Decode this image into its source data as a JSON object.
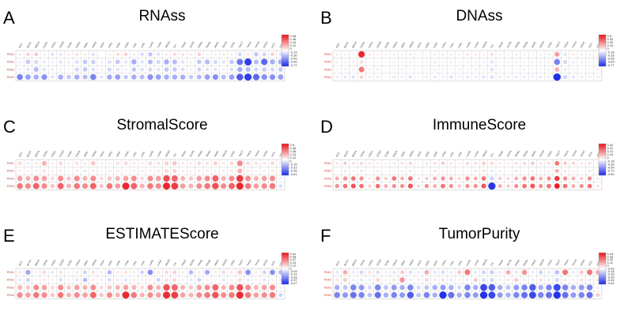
{
  "figure": {
    "cancer_types": [
      "ACC",
      "BLCA",
      "BRCA",
      "CESC",
      "CHOL",
      "COAD",
      "DLBC",
      "ESCA",
      "GBM",
      "HNSC",
      "KICH",
      "KIRC",
      "KIRP",
      "LAML",
      "LGG",
      "LIHC",
      "LUAD",
      "LUSC",
      "MESO",
      "OV",
      "PAAD",
      "PCPG",
      "PRAD",
      "READ",
      "SARC",
      "SKCM",
      "STAD",
      "TGCT",
      "THCA",
      "THYM",
      "UCEC",
      "UCS",
      "UVM"
    ],
    "genes": [
      "PDK1",
      "PDK2",
      "PDK3",
      "PDK4"
    ],
    "colors": {
      "positive": "#e8141b",
      "negative": "#1a2be6",
      "neutral": "#ffffff",
      "grid": "#c8c8c8"
    }
  },
  "chart_data": [
    {
      "type": "heatmap",
      "letter": "A",
      "title": "RNAss",
      "rows": [
        "PDK1",
        "PDK2",
        "PDK3",
        "PDK4"
      ],
      "colorbar_ticks": [
        "0.48",
        "0.36",
        "0.24",
        "0.12",
        "0",
        "-0.15",
        "-0.30",
        "-0.45",
        "-0.60",
        "-0.77"
      ],
      "min": -0.77,
      "max": 0.48,
      "values": [
        [
          0.05,
          0.1,
          0.12,
          -0.05,
          -0.1,
          -0.08,
          0.04,
          0.06,
          0.05,
          -0.1,
          0,
          -0.05,
          0.08,
          0.1,
          0.05,
          -0.12,
          -0.2,
          -0.1,
          0.05,
          0.08,
          0.06,
          0.05,
          0.1,
          -0.05,
          0.04,
          0.05,
          0.04,
          -0.15,
          0.06,
          -0.2,
          -0.15,
          0.1,
          -0.1
        ],
        [
          -0.06,
          -0.2,
          -0.15,
          -0.08,
          -0.05,
          -0.1,
          0.05,
          -0.12,
          -0.2,
          -0.18,
          -0.05,
          -0.12,
          -0.2,
          -0.1,
          -0.3,
          -0.1,
          -0.25,
          -0.15,
          -0.3,
          -0.25,
          -0.1,
          -0.05,
          -0.2,
          -0.25,
          -0.15,
          -0.1,
          -0.2,
          -0.5,
          -0.7,
          -0.25,
          -0.55,
          -0.3,
          -0.3
        ],
        [
          -0.05,
          -0.1,
          -0.25,
          -0.1,
          0.05,
          -0.05,
          0.03,
          -0.15,
          -0.2,
          -0.12,
          0.04,
          -0.15,
          -0.1,
          -0.05,
          -0.2,
          -0.12,
          -0.15,
          -0.1,
          -0.2,
          -0.2,
          -0.12,
          -0.05,
          -0.15,
          -0.1,
          -0.1,
          -0.05,
          -0.12,
          -0.3,
          -0.25,
          -0.15,
          -0.2,
          -0.15,
          -0.2
        ],
        [
          -0.45,
          -0.35,
          -0.3,
          -0.4,
          -0.1,
          -0.3,
          -0.2,
          -0.3,
          -0.25,
          -0.45,
          -0.1,
          -0.3,
          -0.35,
          -0.2,
          -0.3,
          -0.25,
          -0.4,
          -0.35,
          -0.3,
          -0.3,
          -0.3,
          -0.2,
          -0.25,
          -0.35,
          -0.4,
          -0.25,
          -0.35,
          -0.6,
          -0.7,
          -0.55,
          -0.4,
          -0.4,
          -0.35
        ]
      ]
    },
    {
      "type": "heatmap",
      "letter": "B",
      "title": "DNAss",
      "rows": [
        "PDK1",
        "PDK2",
        "PDK3",
        "PDK4"
      ],
      "colorbar_ticks": [
        "0.6",
        "0.52",
        "0.32",
        "0.10",
        "0",
        "-0.18",
        "-0.33",
        "-0.48",
        "-0.63",
        "-0.77"
      ],
      "min": -0.77,
      "max": 0.6,
      "values": [
        [
          0.05,
          0.04,
          -0.04,
          0.55,
          0.06,
          0.04,
          -0.04,
          0.05,
          -0.04,
          0.06,
          0.03,
          -0.03,
          0.04,
          0.05,
          -0.05,
          0.04,
          0.06,
          0.05,
          0.03,
          0.08,
          0.04,
          -0.03,
          0.05,
          0.04,
          0.03,
          0.04,
          0.05,
          0.25,
          -0.1,
          0.06,
          0.05,
          -0.05,
          0.04
        ],
        [
          -0.05,
          -0.04,
          0.04,
          0.1,
          -0.03,
          -0.04,
          0.03,
          -0.05,
          -0.04,
          0.05,
          -0.03,
          0.04,
          -0.06,
          -0.04,
          0.05,
          -0.04,
          -0.05,
          0.04,
          -0.05,
          -0.1,
          0.03,
          -0.04,
          -0.05,
          0.04,
          -0.04,
          -0.05,
          0.04,
          -0.45,
          -0.15,
          -0.06,
          -0.05,
          -0.04,
          -0.05
        ],
        [
          0.04,
          -0.05,
          -0.04,
          0.35,
          0.04,
          0.05,
          -0.03,
          0.04,
          -0.05,
          0.04,
          0.03,
          -0.04,
          0.05,
          0.04,
          -0.04,
          0.05,
          0.04,
          -0.05,
          0.04,
          -0.12,
          0.04,
          0.03,
          -0.04,
          0.05,
          0.04,
          -0.04,
          0.05,
          0.2,
          -0.08,
          0.05,
          0.04,
          -0.04,
          0.05
        ],
        [
          -0.06,
          -0.08,
          -0.1,
          0.12,
          -0.05,
          -0.06,
          -0.04,
          -0.08,
          -0.05,
          -0.1,
          -0.04,
          -0.06,
          -0.08,
          -0.06,
          -0.1,
          -0.05,
          -0.08,
          -0.06,
          -0.1,
          -0.12,
          -0.06,
          -0.05,
          -0.08,
          -0.06,
          -0.05,
          -0.08,
          -0.06,
          -0.75,
          -0.15,
          -0.08,
          -0.06,
          -0.05,
          -0.06
        ]
      ]
    },
    {
      "type": "heatmap",
      "letter": "C",
      "title": "StromalScore",
      "rows": [
        "PDK1",
        "PDK2",
        "PDK3",
        "PDK4"
      ],
      "colorbar_ticks": [
        "0.6",
        "0.48",
        "0.36",
        "0.24",
        "0.12",
        "0",
        "-0.15",
        "-0.31",
        "-0.46",
        "-0.61"
      ],
      "min": -0.61,
      "max": 0.6,
      "values": [
        [
          0.1,
          -0.05,
          0.06,
          0.2,
          0.05,
          0.1,
          0.04,
          0.08,
          0.06,
          0.15,
          -0.04,
          0.05,
          0.08,
          0.1,
          0.06,
          0.05,
          0.1,
          0.08,
          0.12,
          0.15,
          0.06,
          0.05,
          0.1,
          0.08,
          0.12,
          0.06,
          0.1,
          0.3,
          0.1,
          0.08,
          0.06,
          0.1,
          -0.05
        ],
        [
          0.05,
          0.04,
          -0.05,
          0.08,
          0.04,
          0.06,
          -0.03,
          0.05,
          -0.06,
          0.05,
          0.04,
          -0.05,
          0.06,
          0.04,
          0.05,
          -0.04,
          0.05,
          0.06,
          0.1,
          0.12,
          0.05,
          0.04,
          0.06,
          0.05,
          -0.04,
          0.05,
          0.06,
          0.2,
          0.05,
          0.05,
          0.04,
          0.06,
          -0.04
        ],
        [
          0.25,
          0.2,
          0.3,
          0.25,
          0.1,
          0.3,
          0.15,
          0.3,
          0.2,
          0.3,
          0.1,
          0.15,
          0.2,
          0.25,
          0.3,
          0.1,
          0.3,
          0.25,
          0.45,
          0.4,
          0.2,
          0.15,
          0.25,
          0.3,
          0.4,
          0.2,
          0.3,
          0.5,
          0.3,
          0.2,
          0.25,
          0.3,
          -0.05
        ],
        [
          0.35,
          0.3,
          0.4,
          0.3,
          0.15,
          0.4,
          0.2,
          0.35,
          0.3,
          0.4,
          0.15,
          0.35,
          0.25,
          0.55,
          0.4,
          0.2,
          0.35,
          0.3,
          0.55,
          0.5,
          0.25,
          0.2,
          0.3,
          0.35,
          0.45,
          0.3,
          0.4,
          0.55,
          0.35,
          0.25,
          0.3,
          0.35,
          -0.1
        ]
      ]
    },
    {
      "type": "heatmap",
      "letter": "D",
      "title": "ImmuneScore",
      "rows": [
        "PDK1",
        "PDK2",
        "PDK3",
        "PDK4"
      ],
      "colorbar_ticks": [
        "0.42",
        "0.31",
        "0.21",
        "0.10",
        "0",
        "-0.18",
        "-0.36",
        "-0.54",
        "-0.72",
        "-0.90"
      ],
      "min": -0.9,
      "max": 0.42,
      "values": [
        [
          0.05,
          0.1,
          0.06,
          0.08,
          0.05,
          0.04,
          0.03,
          0.05,
          0.06,
          0.08,
          -0.04,
          0.05,
          0.06,
          0.1,
          0.05,
          0.04,
          0.08,
          0.06,
          0.1,
          0.08,
          0.05,
          0.04,
          0.06,
          0.08,
          0.1,
          0.05,
          0.06,
          0.25,
          0.1,
          0.08,
          0.05,
          0.06,
          0.04
        ],
        [
          -0.04,
          0.05,
          -0.05,
          0.06,
          -0.03,
          0.04,
          -0.04,
          -0.05,
          0.04,
          0.05,
          -0.03,
          -0.04,
          0.05,
          0.04,
          -0.05,
          0.03,
          -0.04,
          0.05,
          0.06,
          -0.1,
          0.04,
          -0.03,
          0.05,
          -0.04,
          0.04,
          -0.05,
          0.04,
          0.15,
          0.05,
          0.04,
          -0.04,
          0.05,
          -0.03
        ],
        [
          0.15,
          0.2,
          0.25,
          0.2,
          0.05,
          0.2,
          0.1,
          0.25,
          0.15,
          0.25,
          0.06,
          0.1,
          0.15,
          0.2,
          0.15,
          0.08,
          0.2,
          0.15,
          0.25,
          -0.2,
          0.1,
          0.08,
          0.15,
          0.2,
          0.25,
          0.15,
          0.2,
          0.35,
          0.2,
          0.15,
          0.1,
          0.2,
          0.05
        ],
        [
          0.2,
          0.25,
          0.3,
          0.25,
          0.1,
          0.25,
          0.15,
          0.2,
          0.2,
          0.3,
          0.08,
          0.2,
          0.15,
          0.25,
          0.2,
          0.1,
          0.2,
          0.2,
          0.3,
          -0.85,
          0.15,
          0.1,
          0.2,
          0.25,
          0.3,
          0.2,
          0.25,
          0.4,
          0.25,
          0.15,
          0.2,
          0.25,
          0.06
        ]
      ]
    },
    {
      "type": "heatmap",
      "letter": "E",
      "title": "ESTIMATEScore",
      "rows": [
        "PDK1",
        "PDK2",
        "PDK3",
        "PDK4"
      ],
      "colorbar_ticks": [
        "0.61",
        "0.49",
        "0.37",
        "0.24",
        "0.12",
        "0",
        "-0.09",
        "-0.19",
        "-0.28",
        "-0.37",
        "-0.47"
      ],
      "min": -0.47,
      "max": 0.61,
      "values": [
        [
          0.06,
          -0.2,
          0.05,
          0.1,
          -0.06,
          0.08,
          0.04,
          0.06,
          -0.1,
          0.08,
          0.05,
          -0.15,
          0.06,
          0.08,
          0.05,
          -0.1,
          -0.25,
          0.06,
          0.1,
          0.12,
          0.05,
          -0.15,
          0.06,
          -0.2,
          0.05,
          0.1,
          0.06,
          0.15,
          -0.25,
          0.05,
          -0.1,
          -0.25,
          -0.15
        ],
        [
          -0.05,
          -0.1,
          0.04,
          0.06,
          0.04,
          -0.08,
          0.03,
          -0.06,
          -0.15,
          0.05,
          -0.04,
          -0.08,
          0.05,
          -0.06,
          0.06,
          -0.04,
          0.05,
          -0.1,
          0.08,
          0.1,
          0.04,
          -0.05,
          -0.1,
          0.05,
          0.04,
          -0.06,
          0.05,
          0.1,
          -0.05,
          0.04,
          -0.06,
          0.05,
          -0.05
        ],
        [
          0.2,
          0.15,
          0.3,
          0.25,
          0.1,
          0.3,
          0.15,
          0.25,
          0.2,
          0.3,
          0.1,
          0.15,
          0.2,
          0.25,
          0.2,
          0.1,
          0.3,
          0.2,
          0.45,
          0.4,
          0.2,
          0.15,
          0.25,
          0.3,
          0.4,
          0.2,
          0.3,
          0.45,
          0.3,
          0.2,
          0.25,
          0.3,
          0.05
        ],
        [
          0.3,
          0.25,
          0.35,
          0.3,
          0.15,
          0.35,
          0.2,
          0.3,
          0.25,
          0.4,
          0.15,
          0.3,
          0.2,
          0.55,
          0.35,
          0.2,
          0.3,
          0.25,
          0.55,
          0.5,
          0.25,
          0.2,
          0.3,
          0.35,
          0.45,
          0.3,
          0.35,
          0.55,
          0.35,
          0.25,
          0.3,
          0.35,
          -0.1
        ]
      ]
    },
    {
      "type": "heatmap",
      "letter": "F",
      "title": "TumorPurity",
      "rows": [
        "PDK1",
        "PDK2",
        "PDK3",
        "PDK4"
      ],
      "colorbar_ticks": [
        "0.43",
        "0.33",
        "0.22",
        "0.11",
        "0",
        "-0.09",
        "-0.18",
        "-0.26",
        "-0.35",
        "-0.44",
        "-0.52"
      ],
      "min": -0.52,
      "max": 0.43,
      "values": [
        [
          -0.06,
          0.15,
          -0.05,
          -0.1,
          0.06,
          -0.08,
          -0.04,
          -0.06,
          0.1,
          -0.08,
          -0.05,
          0.15,
          -0.06,
          -0.08,
          -0.05,
          0.1,
          0.25,
          -0.06,
          -0.1,
          -0.12,
          -0.05,
          0.15,
          -0.06,
          0.2,
          -0.05,
          -0.1,
          -0.06,
          -0.15,
          0.25,
          -0.05,
          0.1,
          0.25,
          0.15
        ],
        [
          0.05,
          0.1,
          -0.04,
          -0.06,
          -0.04,
          0.08,
          -0.03,
          0.06,
          0.2,
          -0.05,
          0.04,
          0.08,
          -0.05,
          0.06,
          -0.06,
          0.04,
          -0.05,
          0.1,
          -0.08,
          -0.1,
          -0.04,
          0.05,
          0.1,
          -0.05,
          -0.04,
          0.06,
          -0.05,
          -0.1,
          0.05,
          -0.04,
          0.06,
          -0.05,
          0.05
        ],
        [
          -0.2,
          -0.15,
          -0.3,
          -0.25,
          -0.1,
          -0.3,
          -0.15,
          -0.25,
          -0.2,
          -0.3,
          -0.1,
          -0.15,
          -0.2,
          -0.25,
          -0.2,
          -0.1,
          -0.3,
          -0.2,
          -0.45,
          -0.4,
          -0.2,
          -0.15,
          -0.25,
          -0.3,
          -0.4,
          -0.2,
          -0.3,
          -0.45,
          -0.3,
          -0.2,
          -0.25,
          -0.3,
          -0.05
        ],
        [
          -0.3,
          -0.25,
          -0.35,
          -0.3,
          -0.15,
          -0.35,
          -0.2,
          -0.3,
          -0.25,
          -0.4,
          -0.15,
          -0.3,
          -0.2,
          -0.5,
          -0.35,
          -0.2,
          -0.3,
          -0.25,
          -0.5,
          -0.45,
          -0.25,
          -0.2,
          -0.3,
          -0.35,
          -0.45,
          -0.3,
          -0.35,
          -0.5,
          -0.35,
          -0.25,
          -0.3,
          -0.35,
          0.1
        ]
      ]
    }
  ]
}
